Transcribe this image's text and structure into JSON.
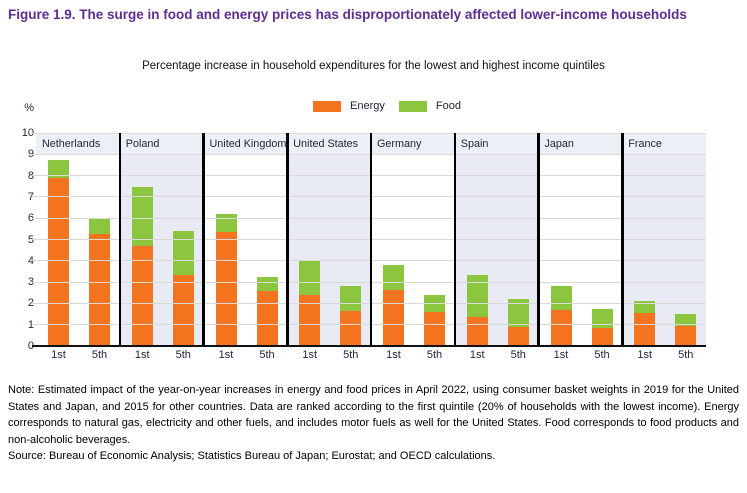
{
  "title": "Figure 1.9. The surge in food and energy prices has disproportionately affected lower-income households",
  "subtitle": "Percentage increase in household expenditures for the lowest and highest income quintiles",
  "note": "Note: Estimated impact of the year-on-year increases in energy and food prices in April 2022, using consumer basket weights in 2019 for the United States and Japan, and 2015 for other countries. Data are ranked according to the first quintile (20% of households with the lowest income). Energy corresponds to natural gas, electricity and other fuels, and includes motor fuels as well for the United States. Food corresponds to food products and non-alcoholic beverages.",
  "source": "Source: Bureau of Economic Analysis; Statistics Bureau of Japan; Eurostat; and OECD calculations.",
  "colors": {
    "energy": "#F4731F",
    "food": "#8CC63E",
    "title": "#5F2D91",
    "header_band": "#EDEFF7",
    "panel_shade": "#E9EBF4",
    "gridline": "#D9D9D9",
    "divider": "#000000"
  },
  "chart_data": {
    "type": "bar",
    "stacked": true,
    "title": "Percentage increase in household expenditures for the lowest and highest income quintiles",
    "y_unit": "%",
    "ylim": [
      0,
      10
    ],
    "y_ticks": [
      0,
      1,
      2,
      3,
      4,
      5,
      6,
      7,
      8,
      9,
      10
    ],
    "grid": true,
    "legend_position": "top-center",
    "legend": [
      {
        "name": "Energy",
        "color": "#F4731F"
      },
      {
        "name": "Food",
        "color": "#8CC63E"
      }
    ],
    "quintile_labels": [
      "1st",
      "5th"
    ],
    "panels": [
      {
        "country": "Netherlands",
        "bars": [
          {
            "label": "1st",
            "energy": 7.9,
            "food": 0.85
          },
          {
            "label": "5th",
            "energy": 5.25,
            "food": 0.7
          }
        ]
      },
      {
        "country": "Poland",
        "bars": [
          {
            "label": "1st",
            "energy": 4.7,
            "food": 2.75
          },
          {
            "label": "5th",
            "energy": 3.35,
            "food": 2.05
          }
        ]
      },
      {
        "country": "United Kingdom",
        "bars": [
          {
            "label": "1st",
            "energy": 5.35,
            "food": 0.85
          },
          {
            "label": "5th",
            "energy": 2.6,
            "food": 0.65
          }
        ]
      },
      {
        "country": "United States",
        "bars": [
          {
            "label": "1st",
            "energy": 2.4,
            "food": 1.6
          },
          {
            "label": "5th",
            "energy": 1.65,
            "food": 1.15
          }
        ]
      },
      {
        "country": "Germany",
        "bars": [
          {
            "label": "1st",
            "energy": 2.65,
            "food": 1.15
          },
          {
            "label": "5th",
            "energy": 1.6,
            "food": 0.8
          }
        ]
      },
      {
        "country": "Spain",
        "bars": [
          {
            "label": "1st",
            "energy": 1.35,
            "food": 2.0
          },
          {
            "label": "5th",
            "energy": 0.9,
            "food": 1.3
          }
        ]
      },
      {
        "country": "Japan",
        "bars": [
          {
            "label": "1st",
            "energy": 1.7,
            "food": 1.1
          },
          {
            "label": "5th",
            "energy": 0.85,
            "food": 0.9
          }
        ]
      },
      {
        "country": "France",
        "bars": [
          {
            "label": "1st",
            "energy": 1.55,
            "food": 0.55
          },
          {
            "label": "5th",
            "energy": 0.95,
            "food": 0.55
          }
        ]
      }
    ]
  }
}
